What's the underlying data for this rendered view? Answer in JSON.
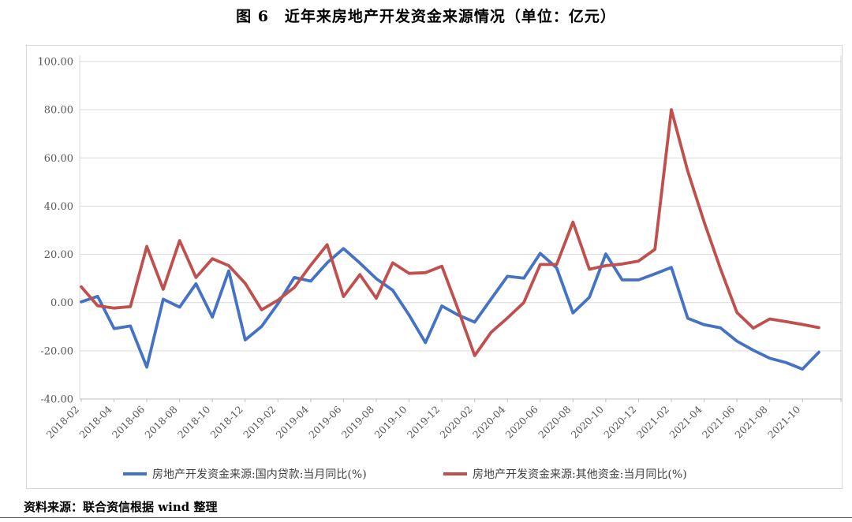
{
  "title": "图 6　近年来房地产开发资金来源情况（单位：亿元）",
  "source_note": "资料来源：联合资信根据 wind 整理",
  "colors": {
    "series_blue": "#4472c4",
    "series_red": "#c0504d",
    "gridline": "#d9d9d9",
    "axis": "#bfbfbf",
    "tick_text": "#595959",
    "legend_text": "#404040",
    "frame": "#d9d9d9"
  },
  "chart_data": {
    "type": "line",
    "title": "图 6　近年来房地产开发资金来源情况（单位：亿元）",
    "xlabel": "",
    "ylabel": "",
    "ylim": [
      -40,
      100
    ],
    "ytick_step": 20,
    "grid": true,
    "legend_position": "bottom",
    "y_tick_labels": [
      "100.00",
      "80.00",
      "60.00",
      "40.00",
      "20.00",
      "0.00",
      "-20.00",
      "-40.00"
    ],
    "x_tick_labels": [
      "2018-02",
      "2018-04",
      "2018-06",
      "2018-08",
      "2018-10",
      "2018-12",
      "2019-02",
      "2019-04",
      "2019-06",
      "2019-08",
      "2019-10",
      "2019-12",
      "2020-02",
      "2020-04",
      "2020-06",
      "2020-08",
      "2020-10",
      "2020-12",
      "2021-02",
      "2021-04",
      "2021-06",
      "2021-08",
      "2021-10"
    ],
    "categories": [
      "2018-02",
      "2018-03",
      "2018-04",
      "2018-05",
      "2018-06",
      "2018-07",
      "2018-08",
      "2018-09",
      "2018-10",
      "2018-11",
      "2018-12",
      "2019-01",
      "2019-02",
      "2019-03",
      "2019-04",
      "2019-05",
      "2019-06",
      "2019-07",
      "2019-08",
      "2019-09",
      "2019-10",
      "2019-11",
      "2019-12",
      "2020-01",
      "2020-02",
      "2020-03",
      "2020-04",
      "2020-05",
      "2020-06",
      "2020-07",
      "2020-08",
      "2020-09",
      "2020-10",
      "2020-11",
      "2020-12",
      "2021-01",
      "2021-02",
      "2021-03",
      "2021-04",
      "2021-05",
      "2021-06",
      "2021-07",
      "2021-08",
      "2021-09",
      "2021-10",
      "2021-11"
    ],
    "series": [
      {
        "name": "房地产开发资金来源:国内贷款:当月同比(%)",
        "key": "domestic-loans",
        "color": "#4472c4",
        "values": [
          0.3,
          2.6,
          -10.8,
          -9.7,
          -26.8,
          1.4,
          -1.9,
          7.8,
          -6.0,
          13.2,
          -15.5,
          -9.9,
          -0.5,
          10.4,
          8.9,
          16.5,
          22.4,
          16.4,
          9.9,
          5.1,
          -5.2,
          -16.6,
          -1.4,
          -5.2,
          -8.1,
          1.4,
          10.9,
          10.1,
          20.4,
          14.4,
          -4.3,
          2.2,
          20.2,
          9.4,
          9.4,
          11.9,
          14.6,
          -6.5,
          -9.2,
          -10.5,
          -16.0,
          -19.8,
          -23.1,
          -24.9,
          -27.6,
          -20.6
        ]
      },
      {
        "name": "房地产开发资金来源:其他资金:当月同比(%)",
        "key": "other-funds",
        "color": "#c0504d",
        "values": [
          6.5,
          -1.3,
          -2.3,
          -1.7,
          23.3,
          5.5,
          25.7,
          10.4,
          18.2,
          15.3,
          8.0,
          -3.0,
          1.0,
          6.3,
          15.5,
          24.0,
          2.5,
          11.6,
          1.8,
          16.5,
          12.1,
          12.4,
          15.1,
          -3.0,
          -22.0,
          -12.4,
          -6.4,
          0.0,
          15.8,
          15.8,
          33.4,
          13.8,
          15.3,
          16.0,
          17.2,
          22.1,
          80.0,
          54.5,
          33.4,
          14.0,
          -4.1,
          -10.6,
          -6.8,
          -7.9,
          -9.1,
          -10.4
        ]
      }
    ]
  }
}
